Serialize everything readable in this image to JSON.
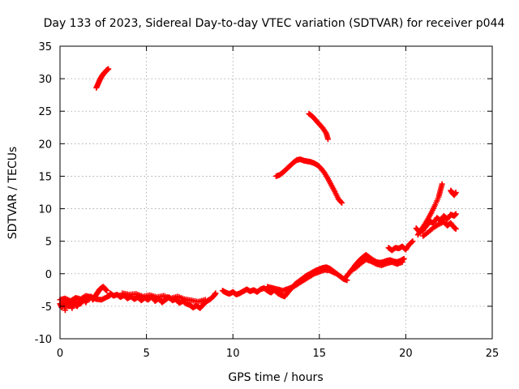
{
  "chart_data": {
    "type": "scatter",
    "title": "Day 133 of 2023, Sidereal Day-to-day VTEC variation (SDTVAR) for receiver p044",
    "xlabel": "GPS time / hours",
    "ylabel": "SDTVAR / TECUs",
    "xlim": [
      0,
      25
    ],
    "ylim": [
      -10,
      35
    ],
    "xticks": [
      0,
      5,
      10,
      15,
      20,
      25
    ],
    "yticks": [
      -10,
      -5,
      0,
      5,
      10,
      15,
      20,
      25,
      30,
      35
    ],
    "grid": true,
    "legend": "none",
    "marker": "plus",
    "colors": {
      "series": "#ff0000",
      "grid": "#a0a0a0",
      "axis": "#000000"
    },
    "series": [
      {
        "points": [
          [
            0.0,
            -4.6
          ],
          [
            0.1,
            -5.2
          ],
          [
            0.2,
            -4.4
          ],
          [
            0.3,
            -5.6
          ],
          [
            0.4,
            -4.2
          ],
          [
            0.5,
            -5.0
          ],
          [
            0.6,
            -4.5
          ],
          [
            0.7,
            -5.3
          ],
          [
            0.8,
            -4.0
          ],
          [
            0.9,
            -4.8
          ],
          [
            1.0,
            -5.0
          ],
          [
            1.1,
            -4.3
          ],
          [
            1.2,
            -4.6
          ],
          [
            1.3,
            -4.1
          ],
          [
            1.4,
            -3.9
          ],
          [
            1.5,
            -4.4
          ],
          [
            1.6,
            -3.6
          ],
          [
            1.7,
            -3.9
          ],
          [
            1.8,
            -3.5
          ],
          [
            1.9,
            -4.0
          ],
          [
            2.0,
            -3.6
          ],
          [
            2.1,
            -3.2
          ],
          [
            2.2,
            -2.8
          ],
          [
            2.3,
            -2.4
          ],
          [
            2.4,
            -2.2
          ],
          [
            2.5,
            -2.0
          ],
          [
            2.6,
            -2.3
          ],
          [
            2.7,
            -2.6
          ]
        ]
      },
      {
        "points": [
          [
            0.0,
            -4.0
          ],
          [
            0.3,
            -3.8
          ],
          [
            0.6,
            -4.2
          ],
          [
            0.9,
            -3.7
          ],
          [
            1.2,
            -3.9
          ],
          [
            1.5,
            -3.4
          ],
          [
            1.8,
            -3.6
          ],
          [
            2.1,
            -3.9
          ],
          [
            2.4,
            -4.0
          ],
          [
            2.7,
            -3.6
          ],
          [
            2.9,
            -3.3
          ]
        ]
      },
      {
        "points": [
          [
            2.1,
            28.6
          ],
          [
            2.2,
            29.2
          ],
          [
            2.3,
            29.8
          ],
          [
            2.4,
            30.3
          ],
          [
            2.5,
            30.7
          ],
          [
            2.6,
            31.0
          ],
          [
            2.7,
            31.3
          ],
          [
            2.8,
            31.5
          ]
        ]
      },
      {
        "points": [
          [
            2.9,
            -3.0
          ],
          [
            3.1,
            -3.4
          ],
          [
            3.3,
            -3.2
          ],
          [
            3.5,
            -3.6
          ],
          [
            3.7,
            -3.3
          ],
          [
            3.9,
            -3.8
          ],
          [
            4.1,
            -3.5
          ],
          [
            4.3,
            -3.9
          ],
          [
            4.5,
            -3.6
          ],
          [
            4.7,
            -4.1
          ],
          [
            4.9,
            -3.7
          ],
          [
            5.1,
            -4.0
          ],
          [
            5.3,
            -3.5
          ],
          [
            5.5,
            -4.2
          ],
          [
            5.7,
            -3.8
          ],
          [
            5.9,
            -4.4
          ],
          [
            6.1,
            -4.0
          ],
          [
            6.3,
            -3.6
          ],
          [
            6.5,
            -4.1
          ],
          [
            6.7,
            -3.9
          ],
          [
            6.9,
            -4.5
          ],
          [
            7.1,
            -4.2
          ],
          [
            7.3,
            -4.6
          ],
          [
            7.5,
            -4.8
          ],
          [
            7.7,
            -5.2
          ],
          [
            7.9,
            -4.9
          ],
          [
            8.1,
            -5.3
          ],
          [
            8.3,
            -4.7
          ],
          [
            8.5,
            -4.2
          ],
          [
            8.7,
            -3.9
          ],
          [
            8.9,
            -3.4
          ],
          [
            9.0,
            -3.0
          ]
        ]
      },
      {
        "points": [
          [
            3.6,
            -3.0
          ],
          [
            4.0,
            -3.2
          ],
          [
            4.4,
            -3.1
          ],
          [
            4.8,
            -3.5
          ],
          [
            5.2,
            -3.3
          ],
          [
            5.6,
            -3.6
          ],
          [
            6.0,
            -3.4
          ],
          [
            6.4,
            -3.8
          ],
          [
            6.8,
            -3.5
          ],
          [
            7.2,
            -3.9
          ],
          [
            7.6,
            -4.1
          ],
          [
            8.0,
            -4.3
          ],
          [
            8.4,
            -4.0
          ]
        ]
      },
      {
        "points": [
          [
            9.4,
            -2.6
          ],
          [
            9.6,
            -2.9
          ],
          [
            9.8,
            -3.1
          ],
          [
            10.0,
            -2.8
          ],
          [
            10.2,
            -3.2
          ],
          [
            10.4,
            -3.0
          ],
          [
            10.6,
            -2.7
          ],
          [
            10.8,
            -2.4
          ],
          [
            11.0,
            -2.7
          ],
          [
            11.2,
            -2.5
          ],
          [
            11.4,
            -2.8
          ],
          [
            11.6,
            -2.4
          ],
          [
            11.8,
            -2.2
          ],
          [
            12.0,
            -2.6
          ],
          [
            12.2,
            -2.9
          ],
          [
            12.4,
            -2.5
          ],
          [
            12.6,
            -3.0
          ],
          [
            12.8,
            -3.3
          ],
          [
            13.0,
            -3.5
          ],
          [
            13.2,
            -2.8
          ],
          [
            13.4,
            -2.2
          ],
          [
            13.6,
            -1.6
          ],
          [
            13.8,
            -1.2
          ],
          [
            14.0,
            -0.8
          ],
          [
            14.2,
            -0.4
          ],
          [
            14.4,
            -0.1
          ],
          [
            14.6,
            0.2
          ],
          [
            14.8,
            0.5
          ],
          [
            15.0,
            0.7
          ],
          [
            15.2,
            0.9
          ],
          [
            15.4,
            1.0
          ],
          [
            15.6,
            0.8
          ],
          [
            15.8,
            0.4
          ],
          [
            16.0,
            0.0
          ],
          [
            16.2,
            -0.4
          ],
          [
            16.4,
            -0.8
          ],
          [
            16.6,
            -1.0
          ]
        ]
      },
      {
        "points": [
          [
            12.0,
            -2.0
          ],
          [
            12.3,
            -2.2
          ],
          [
            12.6,
            -2.4
          ],
          [
            12.9,
            -2.6
          ],
          [
            13.2,
            -2.3
          ],
          [
            13.5,
            -2.0
          ],
          [
            13.8,
            -1.5
          ],
          [
            14.1,
            -1.0
          ],
          [
            14.4,
            -0.5
          ],
          [
            14.7,
            0.0
          ],
          [
            15.0,
            0.3
          ],
          [
            15.3,
            0.6
          ],
          [
            15.6,
            0.5
          ],
          [
            15.9,
            0.1
          ]
        ]
      },
      {
        "points": [
          [
            12.5,
            15.0
          ],
          [
            12.7,
            15.2
          ],
          [
            12.9,
            15.6
          ],
          [
            13.1,
            16.1
          ],
          [
            13.3,
            16.6
          ],
          [
            13.5,
            17.1
          ],
          [
            13.7,
            17.5
          ],
          [
            13.9,
            17.6
          ],
          [
            14.1,
            17.4
          ],
          [
            14.3,
            17.3
          ],
          [
            14.5,
            17.2
          ],
          [
            14.7,
            17.0
          ],
          [
            14.9,
            16.7
          ],
          [
            15.1,
            16.2
          ],
          [
            15.3,
            15.5
          ],
          [
            15.5,
            14.6
          ],
          [
            15.7,
            13.6
          ],
          [
            15.9,
            12.6
          ],
          [
            16.1,
            11.5
          ],
          [
            16.3,
            10.9
          ]
        ]
      },
      {
        "points": [
          [
            14.4,
            24.6
          ],
          [
            14.6,
            24.2
          ],
          [
            14.8,
            23.6
          ],
          [
            15.0,
            23.0
          ],
          [
            15.2,
            22.4
          ],
          [
            15.4,
            21.6
          ],
          [
            15.5,
            20.7
          ]
        ]
      },
      {
        "points": [
          [
            16.5,
            -0.6
          ],
          [
            16.7,
            0.0
          ],
          [
            16.9,
            0.7
          ],
          [
            17.1,
            1.4
          ],
          [
            17.3,
            2.0
          ],
          [
            17.5,
            2.5
          ],
          [
            17.7,
            2.9
          ],
          [
            17.9,
            2.5
          ],
          [
            18.1,
            2.1
          ],
          [
            18.3,
            1.8
          ],
          [
            18.5,
            1.7
          ],
          [
            18.7,
            1.8
          ],
          [
            18.9,
            2.0
          ],
          [
            19.1,
            2.1
          ],
          [
            19.3,
            1.9
          ],
          [
            19.5,
            1.8
          ],
          [
            19.7,
            2.0
          ],
          [
            19.9,
            2.3
          ]
        ]
      },
      {
        "points": [
          [
            16.8,
            0.4
          ],
          [
            17.1,
            0.9
          ],
          [
            17.4,
            1.6
          ],
          [
            17.7,
            2.2
          ],
          [
            18.0,
            1.9
          ],
          [
            18.3,
            1.5
          ],
          [
            18.6,
            1.3
          ],
          [
            18.9,
            1.6
          ],
          [
            19.2,
            1.8
          ],
          [
            19.5,
            1.5
          ],
          [
            19.8,
            1.8
          ]
        ]
      },
      {
        "points": [
          [
            19.0,
            4.0
          ],
          [
            19.2,
            3.6
          ],
          [
            19.4,
            4.0
          ],
          [
            19.6,
            3.9
          ],
          [
            19.8,
            4.2
          ],
          [
            20.0,
            3.7
          ],
          [
            20.2,
            4.5
          ],
          [
            20.4,
            5.0
          ]
        ]
      },
      {
        "points": [
          [
            20.7,
            6.0
          ],
          [
            20.9,
            6.8
          ],
          [
            21.1,
            7.6
          ],
          [
            21.3,
            8.5
          ],
          [
            21.5,
            9.5
          ],
          [
            21.7,
            10.6
          ],
          [
            21.9,
            11.8
          ],
          [
            22.0,
            12.8
          ],
          [
            22.1,
            13.8
          ]
        ]
      },
      {
        "points": [
          [
            20.6,
            7.0
          ],
          [
            20.8,
            6.4
          ],
          [
            21.0,
            6.7
          ],
          [
            21.2,
            7.4
          ],
          [
            21.4,
            8.0
          ],
          [
            21.6,
            7.8
          ],
          [
            21.8,
            8.6
          ],
          [
            22.0,
            8.2
          ],
          [
            22.2,
            8.9
          ],
          [
            22.4,
            8.4
          ],
          [
            22.6,
            9.1
          ],
          [
            22.8,
            8.9
          ],
          [
            22.9,
            9.2
          ]
        ]
      },
      {
        "points": [
          [
            21.0,
            5.8
          ],
          [
            21.3,
            6.4
          ],
          [
            21.6,
            7.1
          ],
          [
            21.9,
            7.6
          ],
          [
            22.2,
            8.0
          ],
          [
            22.4,
            7.4
          ],
          [
            22.6,
            7.8
          ],
          [
            22.8,
            7.1
          ],
          [
            22.9,
            6.9
          ]
        ]
      },
      {
        "points": [
          [
            22.6,
            12.8
          ],
          [
            22.7,
            12.4
          ],
          [
            22.8,
            12.1
          ],
          [
            22.9,
            12.5
          ]
        ]
      }
    ]
  }
}
